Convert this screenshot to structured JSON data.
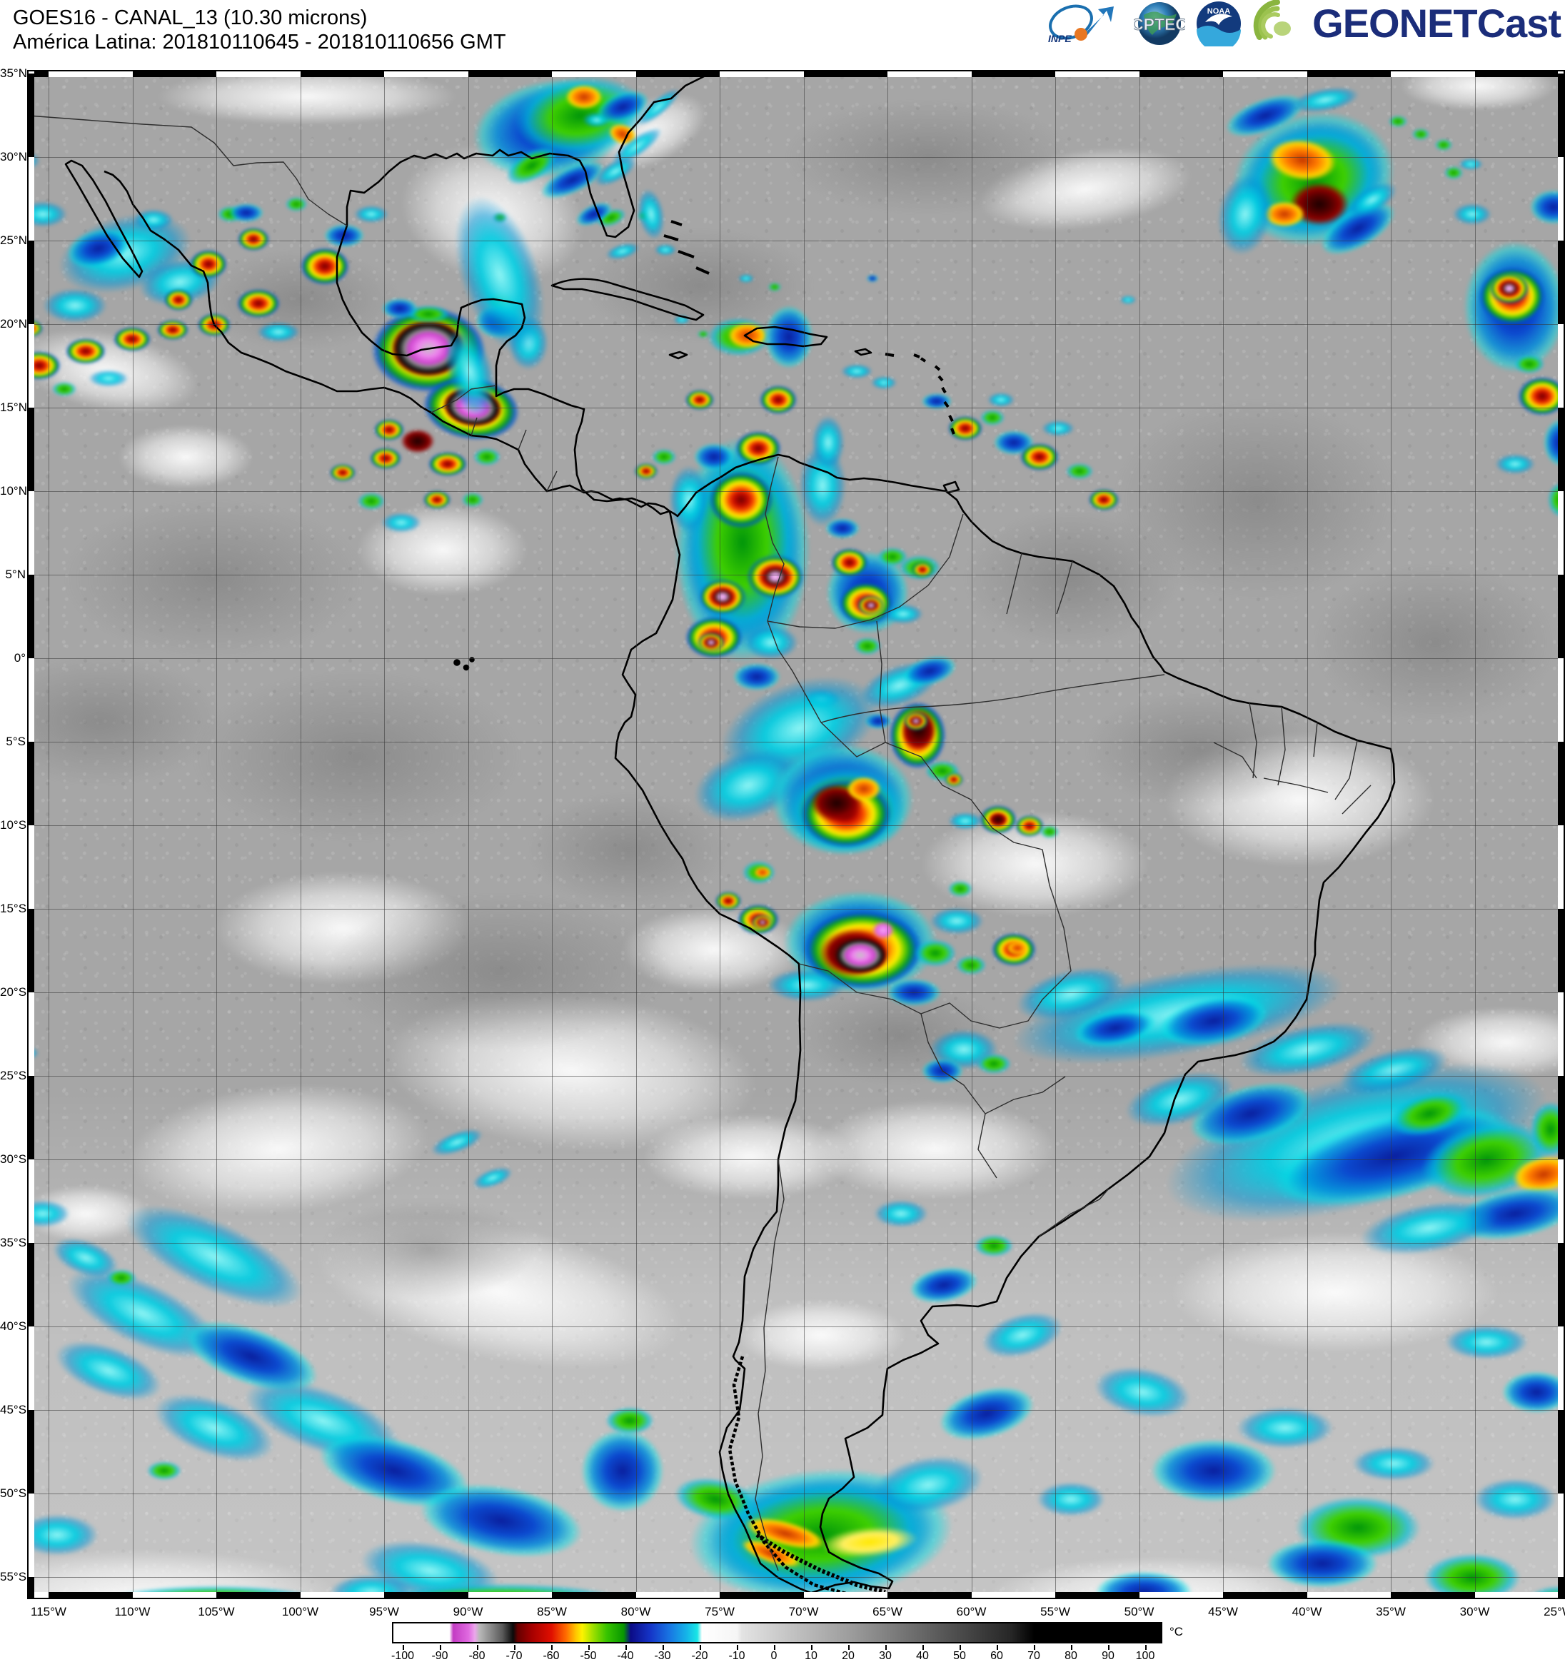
{
  "header": {
    "title_line1": "GOES16 - CANAL_13 (10.30 microns)",
    "title_line2": "América Latina: 201810110645 - 201810110656 GMT",
    "logos": {
      "inpe": "INPE",
      "cptec": "CPTEC",
      "noaa": "NOAA",
      "geonetcast": "GEONETCast"
    }
  },
  "map": {
    "lat_labels": [
      "35°N",
      "30°N",
      "25°N",
      "20°N",
      "15°N",
      "10°N",
      "5°N",
      "0°",
      "5°S",
      "10°S",
      "15°S",
      "20°S",
      "25°S",
      "30°S",
      "35°S",
      "40°S",
      "45°S",
      "50°S",
      "55°S"
    ],
    "lon_labels": [
      "115°W",
      "110°W",
      "105°W",
      "100°W",
      "95°W",
      "90°W",
      "85°W",
      "80°W",
      "75°W",
      "70°W",
      "65°W",
      "60°W",
      "55°W",
      "50°W",
      "45°W",
      "40°W",
      "35°W",
      "30°W",
      "25°W"
    ]
  },
  "colorbar": {
    "unit": "°C",
    "ticks": [
      "-100",
      "-90",
      "-80",
      "-70",
      "-60",
      "-50",
      "-40",
      "-30",
      "-20",
      "-10",
      "0",
      "10",
      "20",
      "30",
      "40",
      "50",
      "60",
      "70",
      "80",
      "90",
      "100"
    ]
  }
}
